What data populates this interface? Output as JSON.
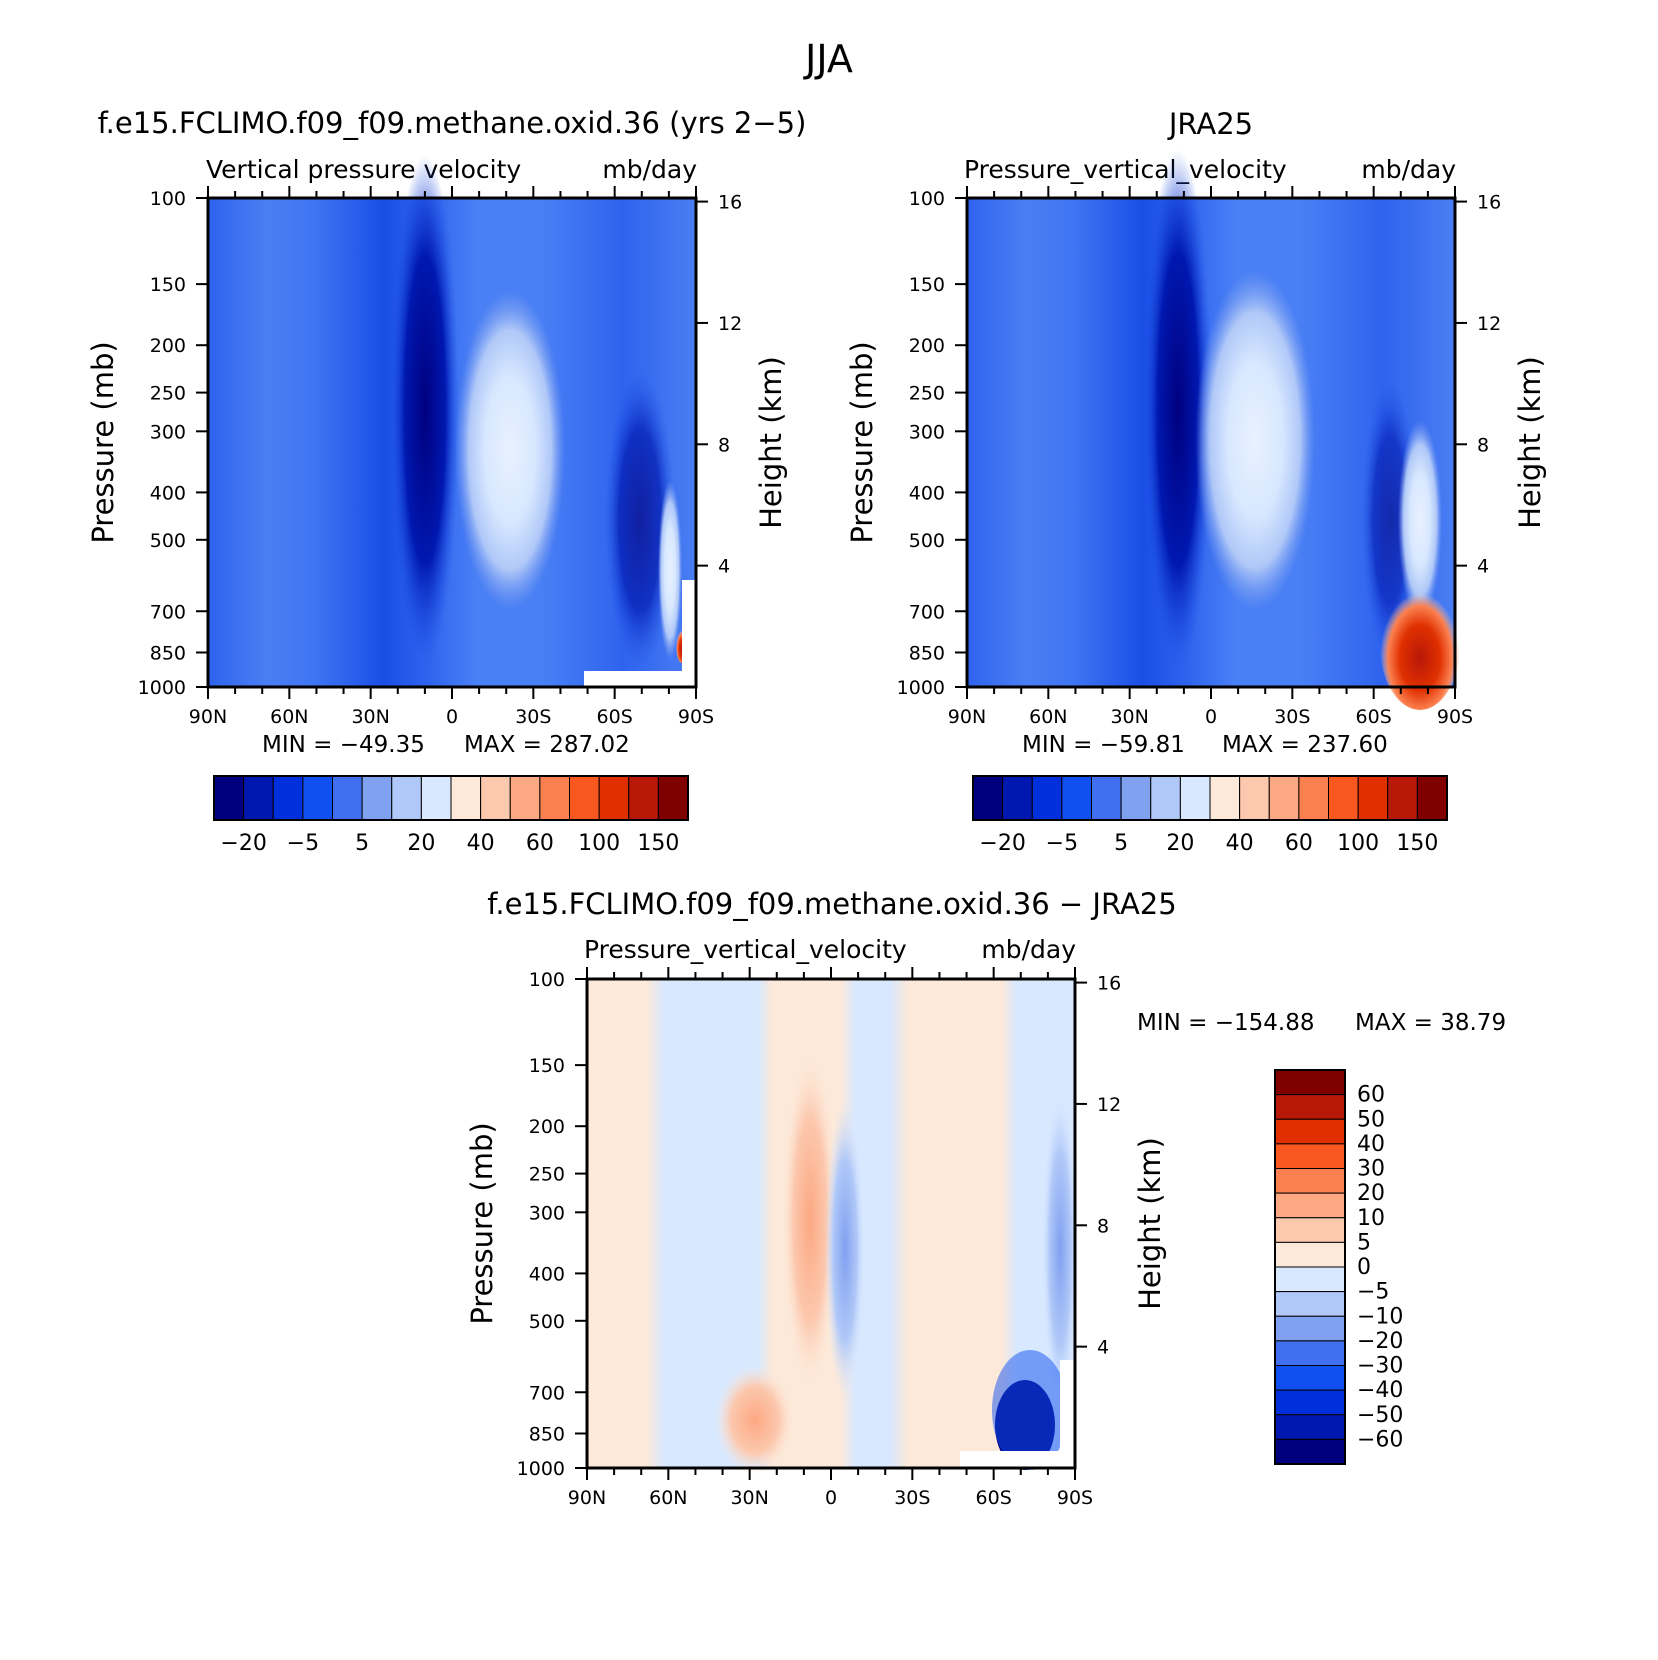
{
  "title": "JJA",
  "yticks": [
    "100",
    "150",
    "200",
    "250",
    "300",
    "400",
    "500",
    "700",
    "850",
    "1000"
  ],
  "ytick_values": [
    100,
    150,
    200,
    250,
    300,
    400,
    500,
    700,
    850,
    1000
  ],
  "right_ticks": [
    "16",
    "12",
    "8",
    "4"
  ],
  "right_tick_values": [
    16,
    12,
    8,
    4
  ],
  "xticks": [
    "90N",
    "60N",
    "30N",
    "0",
    "30S",
    "60S",
    "90S"
  ],
  "xtick_values": [
    90,
    60,
    30,
    0,
    -30,
    -60,
    -90
  ],
  "chart_data": [
    {
      "type": "heatmap",
      "title": "f.e15.FCLIMO.f09_f09.methane.oxid.36 (yrs 2−5)",
      "subtitle_left": "Vertical pressure velocity",
      "subtitle_right": "mb/day",
      "ylabel": "Pressure (mb)",
      "ylabel_right": "Height (km)",
      "ylim": [
        1000,
        100
      ],
      "xlim": [
        90,
        -90
      ],
      "min_label": "MIN = −49.35",
      "max_label": "MAX = 287.02",
      "min": -49.35,
      "max": 287.02,
      "colorbar": {
        "orientation": "horizontal",
        "labels": [
          "−20",
          "−5",
          "5",
          "20",
          "40",
          "60",
          "100",
          "150"
        ],
        "colors": [
          "#00007f",
          "#0018b0",
          "#0030dc",
          "#1050f0",
          "#4070f0",
          "#80a0f0",
          "#b0c8f8",
          "#d8e8ff",
          "#fde9d9",
          "#fcc8ae",
          "#fca882",
          "#fb8050",
          "#f85820",
          "#e03000",
          "#b81808",
          "#800000"
        ]
      }
    },
    {
      "type": "heatmap",
      "title": "JRA25",
      "subtitle_left": "Pressure_vertical_velocity",
      "subtitle_right": "mb/day",
      "ylabel": "Pressure (mb)",
      "ylabel_right": "Height (km)",
      "ylim": [
        1000,
        100
      ],
      "xlim": [
        90,
        -90
      ],
      "min_label": "MIN = −59.81",
      "max_label": "MAX = 237.60",
      "min": -59.81,
      "max": 237.6,
      "colorbar": {
        "orientation": "horizontal",
        "labels": [
          "−20",
          "−5",
          "5",
          "20",
          "40",
          "60",
          "100",
          "150"
        ],
        "colors": [
          "#00007f",
          "#0018b0",
          "#0030dc",
          "#1050f0",
          "#4070f0",
          "#80a0f0",
          "#b0c8f8",
          "#d8e8ff",
          "#fde9d9",
          "#fcc8ae",
          "#fca882",
          "#fb8050",
          "#f85820",
          "#e03000",
          "#b81808",
          "#800000"
        ]
      }
    },
    {
      "type": "heatmap",
      "title": "f.e15.FCLIMO.f09_f09.methane.oxid.36 − JRA25",
      "subtitle_left": "Pressure_vertical_velocity",
      "subtitle_right": "mb/day",
      "ylabel": "Pressure (mb)",
      "ylabel_right": "Height (km)",
      "ylim": [
        1000,
        100
      ],
      "xlim": [
        90,
        -90
      ],
      "min_label": "MIN = −154.88",
      "max_label": "MAX =   38.79",
      "min": -154.88,
      "max": 38.79,
      "colorbar": {
        "orientation": "vertical",
        "labels": [
          "60",
          "50",
          "40",
          "30",
          "20",
          "10",
          "5",
          "0",
          "−5",
          "−10",
          "−20",
          "−30",
          "−40",
          "−50",
          "−60"
        ],
        "colors": [
          "#800000",
          "#b81808",
          "#e03000",
          "#f85820",
          "#fb8050",
          "#fca882",
          "#fcc8ae",
          "#fde9d9",
          "#d8e8ff",
          "#b0c8f8",
          "#80a0f0",
          "#4070f0",
          "#1050f0",
          "#0030dc",
          "#0018b0",
          "#00007f"
        ]
      }
    }
  ]
}
